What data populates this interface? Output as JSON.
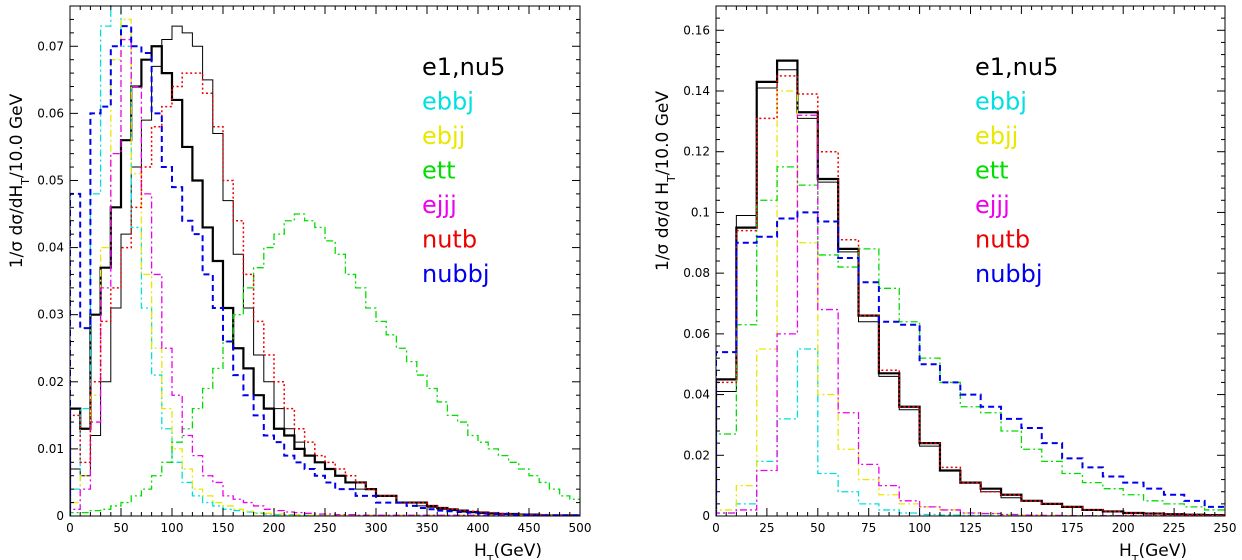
{
  "chart_data": [
    {
      "type": "line",
      "step": true,
      "xlabel": "H_T(GeV)",
      "ylabel": "1/σ dσ/dH_T/10.0 GeV",
      "xlim": [
        0,
        500
      ],
      "ylim": [
        0,
        0.076
      ],
      "xticks": [
        0,
        50,
        100,
        150,
        200,
        250,
        300,
        350,
        400,
        450,
        500
      ],
      "yticks": [
        0,
        0.01,
        0.02,
        0.03,
        0.04,
        0.05,
        0.06,
        0.07
      ],
      "xtick_labels": [
        "0",
        "50",
        "100",
        "150",
        "200",
        "250",
        "300",
        "350",
        "400",
        "450",
        "500"
      ],
      "ytick_labels": [
        "0",
        "0.01",
        "0.02",
        "0.03",
        "0.04",
        "0.05",
        "0.06",
        "0.07"
      ],
      "bin_width": 10,
      "legend": [
        "e1,nu5",
        "ebbj",
        "ebjj",
        "ett",
        "ejjj",
        "nutb",
        "nubbj"
      ],
      "legend_position": "top-right",
      "series": [
        {
          "name": "e1,nu5 (thick)",
          "color": "#000000",
          "dash": "solid",
          "width": 2.2,
          "values": [
            0.016,
            0.013,
            0.03,
            0.037,
            0.046,
            0.056,
            0.064,
            0.068,
            0.07,
            0.066,
            0.062,
            0.055,
            0.05,
            0.043,
            0.038,
            0.031,
            0.025,
            0.022,
            0.018,
            0.016,
            0.013,
            0.012,
            0.01,
            0.009,
            0.008,
            0.007,
            0.006,
            0.005,
            0.005,
            0.004,
            0.003,
            0.003,
            0.002,
            0.002,
            0.002,
            0.0015,
            0.0012,
            0.001,
            0.0008,
            0.0006,
            0.0005,
            0.0004,
            0.0003,
            0.0003,
            0.0002,
            0.0002,
            0.0001,
            0.0001,
            0.0001,
            0.0001
          ]
        },
        {
          "name": "e1,nu5 (thin)",
          "color": "#000000",
          "dash": "solid",
          "width": 1,
          "values": [
            0.007,
            0.006,
            0.012,
            0.02,
            0.031,
            0.042,
            0.052,
            0.059,
            0.067,
            0.071,
            0.073,
            0.072,
            0.07,
            0.065,
            0.057,
            0.047,
            0.039,
            0.031,
            0.024,
            0.02,
            0.016,
            0.013,
            0.011,
            0.009,
            0.008,
            0.007,
            0.006,
            0.005,
            0.004,
            0.004,
            0.003,
            0.003,
            0.002,
            0.002,
            0.0015,
            0.0013,
            0.001,
            0.0008,
            0.0006,
            0.0005,
            0.0004,
            0.0003,
            0.0003,
            0.0002,
            0.0002,
            0.0001,
            0.0001,
            0.0001,
            0.0001,
            0.0001
          ]
        },
        {
          "name": "ebbj",
          "color": "#00e0e0",
          "dash": "dashdot",
          "width": 1.3,
          "values": [
            0.004,
            0.016,
            0.048,
            0.073,
            0.081,
            0.07,
            0.043,
            0.031,
            0.021,
            0.013,
            0.008,
            0.005,
            0.003,
            0.002,
            0.0015,
            0.001,
            0.0008,
            0.0006,
            0.0004,
            0.0003,
            0.0002,
            0.0002,
            0.0001,
            0.0001,
            0.0001,
            0.0001,
            0.0001,
            0.0001,
            0.0001,
            0.0001,
            0.0001,
            0.0001,
            0.0001,
            0.0001,
            0.0001,
            0.0001,
            0.0001,
            0.0001,
            0.0001,
            0.0001,
            0.0001,
            0.0001,
            0.0001,
            0.0001,
            0.0001,
            0.0001,
            0.0001,
            0.0001,
            0.0001,
            0.0001
          ]
        },
        {
          "name": "ebjj",
          "color": "#e8e800",
          "dash": "dashdot",
          "width": 1.3,
          "values": [
            0.002,
            0.006,
            0.018,
            0.04,
            0.068,
            0.074,
            0.051,
            0.036,
            0.025,
            0.016,
            0.01,
            0.007,
            0.004,
            0.003,
            0.002,
            0.0015,
            0.001,
            0.0007,
            0.0005,
            0.0004,
            0.0003,
            0.0002,
            0.0002,
            0.0001,
            0.0001,
            0.0001,
            0.0001,
            0.0001,
            0.0001,
            0.0001,
            0.0001,
            0.0001,
            0.0001,
            0.0001,
            0.0001,
            0.0001,
            0.0001,
            0.0001,
            0.0001,
            0.0001,
            0.0001,
            0.0001,
            0.0001,
            0.0001,
            0.0001,
            0.0001,
            0.0001,
            0.0001,
            0.0001,
            0.0001
          ]
        },
        {
          "name": "ett",
          "color": "#00dd00",
          "dash": "dashdot",
          "width": 1.3,
          "values": [
            0.0005,
            0.0005,
            0.0008,
            0.001,
            0.0015,
            0.002,
            0.003,
            0.004,
            0.006,
            0.008,
            0.011,
            0.013,
            0.016,
            0.019,
            0.022,
            0.026,
            0.03,
            0.034,
            0.037,
            0.04,
            0.042,
            0.044,
            0.045,
            0.044,
            0.043,
            0.041,
            0.039,
            0.036,
            0.034,
            0.031,
            0.029,
            0.027,
            0.025,
            0.023,
            0.021,
            0.019,
            0.017,
            0.015,
            0.014,
            0.012,
            0.011,
            0.01,
            0.009,
            0.008,
            0.007,
            0.006,
            0.005,
            0.004,
            0.003,
            0.0025
          ]
        },
        {
          "name": "ejjj",
          "color": "#ee00ee",
          "dash": "dashdot",
          "width": 1.3,
          "values": [
            0.001,
            0.004,
            0.014,
            0.034,
            0.054,
            0.071,
            0.064,
            0.048,
            0.036,
            0.025,
            0.018,
            0.012,
            0.009,
            0.006,
            0.005,
            0.003,
            0.0025,
            0.002,
            0.0015,
            0.001,
            0.0008,
            0.0006,
            0.0005,
            0.0004,
            0.0003,
            0.0003,
            0.0002,
            0.0002,
            0.0001,
            0.0001,
            0.0001,
            0.0001,
            0.0001,
            0.0001,
            0.0001,
            0.0001,
            0.0001,
            0.0001,
            0.0001,
            0.0001,
            0.0001,
            0.0001,
            0.0001,
            0.0001,
            0.0001,
            0.0001,
            0.0001,
            0.0001,
            0.0001,
            0.0001
          ]
        },
        {
          "name": "nutb",
          "color": "#ee0000",
          "dash": "dot",
          "width": 1.5,
          "values": [
            0.015,
            0.008,
            0.02,
            0.029,
            0.034,
            0.04,
            0.046,
            0.052,
            0.058,
            0.061,
            0.064,
            0.066,
            0.066,
            0.063,
            0.058,
            0.05,
            0.044,
            0.036,
            0.029,
            0.024,
            0.02,
            0.016,
            0.013,
            0.011,
            0.009,
            0.008,
            0.007,
            0.006,
            0.005,
            0.004,
            0.003,
            0.003,
            0.002,
            0.002,
            0.002,
            0.0015,
            0.0012,
            0.001,
            0.0008,
            0.0007,
            0.0006,
            0.0005,
            0.0004,
            0.0003,
            0.0003,
            0.0002,
            0.0002,
            0.0001,
            0.0001,
            0.0001
          ]
        },
        {
          "name": "nubbj",
          "color": "#0000ee",
          "dash": "dash",
          "width": 2,
          "values": [
            0.048,
            0.028,
            0.06,
            0.061,
            0.07,
            0.073,
            0.07,
            0.069,
            0.06,
            0.052,
            0.049,
            0.044,
            0.042,
            0.036,
            0.031,
            0.026,
            0.021,
            0.018,
            0.015,
            0.012,
            0.011,
            0.009,
            0.008,
            0.007,
            0.006,
            0.005,
            0.004,
            0.004,
            0.003,
            0.003,
            0.002,
            0.002,
            0.002,
            0.0015,
            0.0012,
            0.001,
            0.0008,
            0.0007,
            0.0006,
            0.0005,
            0.0004,
            0.0003,
            0.0003,
            0.0002,
            0.0002,
            0.0001,
            0.0001,
            0.0001,
            0.0001,
            0.0001
          ]
        }
      ]
    },
    {
      "type": "line",
      "step": true,
      "xlabel": "H_T(GeV)",
      "ylabel": "1/σ dσ/d H_T/10.0 GeV",
      "xlim": [
        0,
        250
      ],
      "ylim": [
        0,
        0.168
      ],
      "xticks": [
        0,
        25,
        50,
        75,
        100,
        125,
        150,
        175,
        200,
        225,
        250
      ],
      "yticks": [
        0,
        0.02,
        0.04,
        0.06,
        0.08,
        0.1,
        0.12,
        0.14,
        0.16
      ],
      "xtick_labels": [
        "0",
        "25",
        "50",
        "75",
        "100",
        "125",
        "150",
        "175",
        "200",
        "225",
        "250"
      ],
      "ytick_labels": [
        "0",
        "0.02",
        "0.04",
        "0.06",
        "0.08",
        "0.1",
        "0.12",
        "0.14",
        "0.16"
      ],
      "bin_width": 10,
      "legend": [
        "e1,nu5",
        "ebbj",
        "ebjj",
        "ett",
        "ejjj",
        "nutb",
        "nubbj"
      ],
      "legend_position": "top-right",
      "series": [
        {
          "name": "e1,nu5 (thick)",
          "color": "#000000",
          "dash": "solid",
          "width": 2.2,
          "values": [
            0.045,
            0.095,
            0.143,
            0.15,
            0.133,
            0.111,
            0.088,
            0.066,
            0.047,
            0.036,
            0.024,
            0.015,
            0.011,
            0.009,
            0.007,
            0.005,
            0.004,
            0.003,
            0.002,
            0.0015,
            0.001,
            0.0008,
            0.0006,
            0.0004,
            0.0003
          ]
        },
        {
          "name": "e1,nu5 (thin)",
          "color": "#000000",
          "dash": "solid",
          "width": 1,
          "values": [
            0.041,
            0.099,
            0.141,
            0.147,
            0.131,
            0.11,
            0.087,
            0.064,
            0.046,
            0.035,
            0.023,
            0.015,
            0.011,
            0.008,
            0.006,
            0.005,
            0.004,
            0.003,
            0.002,
            0.0015,
            0.001,
            0.0008,
            0.0006,
            0.0004,
            0.0003
          ]
        },
        {
          "name": "ebbj",
          "color": "#00e0e0",
          "dash": "dashdot",
          "width": 1.3,
          "values": [
            0.001,
            0.004,
            0.018,
            0.032,
            0.055,
            0.014,
            0.008,
            0.004,
            0.002,
            0.001,
            0.0005,
            0.0003,
            0.0002,
            0.0001,
            0.0001,
            0.0001,
            0.0001,
            0.0001,
            0.0001,
            0.0001,
            0.0001,
            0.0001,
            0.0001,
            0.0001,
            0.0001
          ]
        },
        {
          "name": "ebjj",
          "color": "#e8e800",
          "dash": "dashdot",
          "width": 1.3,
          "values": [
            0.002,
            0.01,
            0.055,
            0.14,
            0.09,
            0.04,
            0.022,
            0.012,
            0.007,
            0.004,
            0.003,
            0.002,
            0.001,
            0.0008,
            0.0005,
            0.0003,
            0.0002,
            0.0001,
            0.0001,
            0.0001,
            0.0001,
            0.0001,
            0.0001,
            0.0001,
            0.0001
          ]
        },
        {
          "name": "ett",
          "color": "#00dd00",
          "dash": "dashdot",
          "width": 1.3,
          "values": [
            0.027,
            0.063,
            0.104,
            0.115,
            0.109,
            0.086,
            0.082,
            0.088,
            0.075,
            0.064,
            0.052,
            0.044,
            0.036,
            0.034,
            0.028,
            0.022,
            0.018,
            0.014,
            0.011,
            0.009,
            0.007,
            0.005,
            0.004,
            0.003,
            0.002
          ]
        },
        {
          "name": "ejjj",
          "color": "#ee00ee",
          "dash": "dashdot",
          "width": 1.3,
          "values": [
            0.001,
            0.002,
            0.015,
            0.06,
            0.132,
            0.068,
            0.034,
            0.017,
            0.01,
            0.005,
            0.003,
            0.002,
            0.001,
            0.0008,
            0.0005,
            0.0003,
            0.0002,
            0.0001,
            0.0001,
            0.0001,
            0.0001,
            0.0001,
            0.0001,
            0.0001,
            0.0001
          ]
        },
        {
          "name": "nutb",
          "color": "#ee0000",
          "dash": "dot",
          "width": 1.5,
          "values": [
            0.044,
            0.094,
            0.131,
            0.145,
            0.139,
            0.12,
            0.091,
            0.066,
            0.048,
            0.036,
            0.024,
            0.016,
            0.011,
            0.008,
            0.007,
            0.005,
            0.004,
            0.003,
            0.002,
            0.0015,
            0.001,
            0.0008,
            0.0006,
            0.0004,
            0.0003
          ]
        },
        {
          "name": "nubbj",
          "color": "#0000ee",
          "dash": "dash",
          "width": 2,
          "values": [
            0.054,
            0.09,
            0.092,
            0.098,
            0.1,
            0.097,
            0.085,
            0.077,
            0.064,
            0.063,
            0.05,
            0.044,
            0.04,
            0.036,
            0.032,
            0.029,
            0.024,
            0.019,
            0.016,
            0.013,
            0.011,
            0.009,
            0.007,
            0.005,
            0.003
          ]
        }
      ]
    }
  ]
}
